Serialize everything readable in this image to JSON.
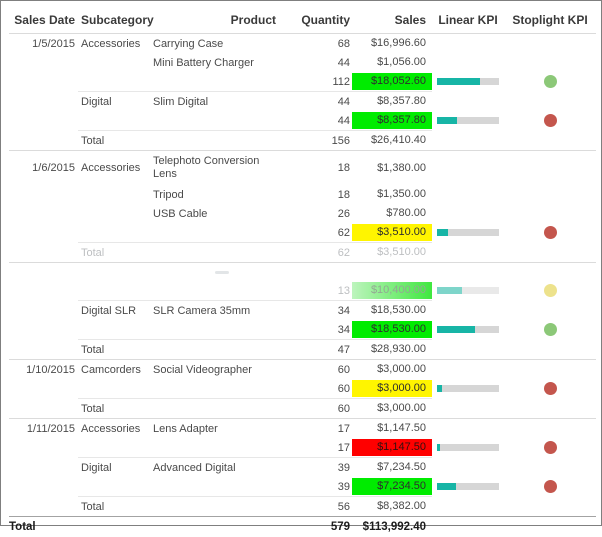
{
  "table": {
    "columns": [
      {
        "key": "date",
        "label": "Sales Date"
      },
      {
        "key": "subcategory",
        "label": "Subcategory"
      },
      {
        "key": "product",
        "label": "Product"
      },
      {
        "key": "quantity",
        "label": "Quantity"
      },
      {
        "key": "sales",
        "label": "Sales"
      },
      {
        "key": "linear",
        "label": "Linear KPI"
      },
      {
        "key": "stoplight",
        "label": "Stoplight KPI"
      }
    ],
    "rows": [
      {
        "cells": {
          "date": "1/5/2015",
          "subcategory": "Accessories",
          "product": "Carrying Case",
          "quantity": "68",
          "sales": "$16,996.60"
        }
      },
      {
        "cells": {
          "product": "Mini Battery Charger",
          "quantity": "44",
          "sales": "$1,056.00"
        }
      },
      {
        "cells": {
          "quantity": "112",
          "sales": "$18,052.60"
        },
        "highlight": "green",
        "bar": 0.7,
        "dot": "green"
      },
      {
        "cells": {
          "subcategory": "Digital",
          "product": "Slim Digital",
          "quantity": "44",
          "sales": "$8,357.80"
        },
        "border": "sub"
      },
      {
        "cells": {
          "quantity": "44",
          "sales": "$8,357.80"
        },
        "highlight": "green",
        "bar": 0.33,
        "dot": "red"
      },
      {
        "cells": {
          "subcategory": "Total",
          "quantity": "156",
          "sales": "$26,410.40"
        },
        "border": "sub"
      },
      {
        "cells": {
          "date": "1/6/2015",
          "subcategory": "Accessories",
          "product": "Telephoto Conversion Lens",
          "quantity": "18",
          "sales": "$1,380.00"
        },
        "border": "group",
        "tall": true
      },
      {
        "cells": {
          "product": "Tripod",
          "quantity": "18",
          "sales": "$1,350.00"
        }
      },
      {
        "cells": {
          "product": "USB Cable",
          "quantity": "26",
          "sales": "$780.00"
        }
      },
      {
        "cells": {
          "quantity": "62",
          "sales": "$3,510.00"
        },
        "highlight": "yellow",
        "bar": 0.17,
        "dot": "red"
      },
      {
        "cells": {
          "subcategory": "Total",
          "quantity": "62",
          "sales": "$3,510.00"
        },
        "border": "sub",
        "faded": true
      },
      {
        "cells": {},
        "border": "group",
        "artifact": true
      },
      {
        "cells": {
          "quantity": "13",
          "sales": "$10,400.00"
        },
        "highlight": "greenfade",
        "bar": 0.4,
        "barStyle": "faded",
        "dot": "yellowfade",
        "faded": true
      },
      {
        "cells": {
          "subcategory": "Digital SLR",
          "product": "SLR Camera 35mm",
          "quantity": "34",
          "sales": "$18,530.00"
        },
        "border": "sub"
      },
      {
        "cells": {
          "quantity": "34",
          "sales": "$18,530.00"
        },
        "highlight": "green",
        "bar": 0.62,
        "dot": "green"
      },
      {
        "cells": {
          "subcategory": "Total",
          "quantity": "47",
          "sales": "$28,930.00"
        },
        "border": "sub"
      },
      {
        "cells": {
          "date": "1/10/2015",
          "subcategory": "Camcorders",
          "product": "Social Videographer",
          "quantity": "60",
          "sales": "$3,000.00"
        },
        "border": "group"
      },
      {
        "cells": {
          "quantity": "60",
          "sales": "$3,000.00"
        },
        "highlight": "yellow",
        "bar": 0.08,
        "dot": "red"
      },
      {
        "cells": {
          "subcategory": "Total",
          "quantity": "60",
          "sales": "$3,000.00"
        },
        "border": "sub"
      },
      {
        "cells": {
          "date": "1/11/2015",
          "subcategory": "Accessories",
          "product": "Lens Adapter",
          "quantity": "17",
          "sales": "$1,147.50"
        },
        "border": "group"
      },
      {
        "cells": {
          "quantity": "17",
          "sales": "$1,147.50"
        },
        "highlight": "red",
        "bar": 0.05,
        "dot": "red"
      },
      {
        "cells": {
          "subcategory": "Digital",
          "product": "Advanced Digital",
          "quantity": "39",
          "sales": "$7,234.50"
        },
        "border": "sub"
      },
      {
        "cells": {
          "quantity": "39",
          "sales": "$7,234.50"
        },
        "highlight": "green",
        "bar": 0.3,
        "dot": "red"
      },
      {
        "cells": {
          "subcategory": "Total",
          "quantity": "56",
          "sales": "$8,382.00"
        },
        "border": "sub"
      },
      {
        "cells": {
          "date": "Total",
          "quantity": "579",
          "sales": "$113,992.40"
        },
        "border": "grand",
        "grand": true
      }
    ]
  },
  "colors": {
    "frame": "#7F7F7F",
    "teal": "#17B5A6",
    "tealFaded": "#7ED5CA",
    "barTrack": "#D6D6D6",
    "barTrackFaded": "#E9E9E9",
    "green": "#00EC00",
    "yellow": "#FFF500",
    "red": "#FF0000",
    "greenFadeStart": "#BDF4BD",
    "greenFadeEnd": "#3FE83F",
    "dotGreen": "#8CC878",
    "dotRed": "#C4564D",
    "dotYellowFade": "#EDE28C",
    "textHeader": "#3A3A3A",
    "textBody": "#4A4A4A",
    "textFaded": "#BDBFC1",
    "borderLight": "#DBDBDB",
    "borderSub": "#E7E7E7",
    "borderGrand": "#A3A3A3"
  }
}
